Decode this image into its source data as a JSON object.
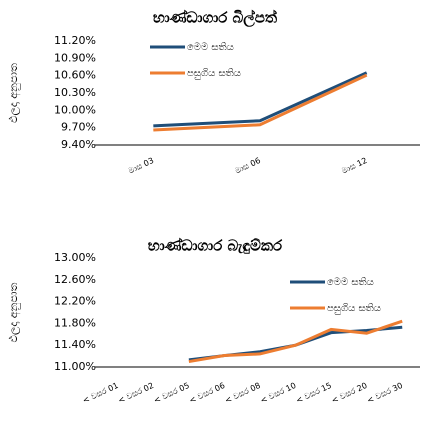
{
  "chart_data": [
    {
      "type": "line",
      "title": "භාණ්ඩාගාර බිල්පත්",
      "y_label": "ඵලදා අනුපාත",
      "categories": [
        "මාස 03",
        "මාස 06",
        "මාස 12"
      ],
      "series": [
        {
          "name": "මෙම සතිය",
          "color": "#1f4e79",
          "values": [
            9.73,
            9.82,
            10.65
          ]
        },
        {
          "name": "පසුගිය සතිය",
          "color": "#ed7d31",
          "values": [
            9.66,
            9.75,
            10.61
          ]
        }
      ],
      "ylim": [
        9.4,
        11.2
      ],
      "yticks": [
        {
          "value": 9.4,
          "label": "9.40%"
        },
        {
          "value": 9.7,
          "label": "9.70%"
        },
        {
          "value": 10.0,
          "label": "10.00%"
        },
        {
          "value": 10.3,
          "label": "10.30%"
        },
        {
          "value": 10.6,
          "label": "10.60%"
        },
        {
          "value": 10.9,
          "label": "10.90%"
        },
        {
          "value": 11.2,
          "label": "11.20%"
        }
      ],
      "legend": "top"
    },
    {
      "type": "line",
      "title": "භාණ්ඩාගාර බැඳුම්කර",
      "y_label": "ඵලදා අනුපාත",
      "categories": [
        "< වසර 01",
        "< වසර 02",
        "< වසර 05",
        "< වසර 06",
        "< වසර 08",
        "< වසර 10",
        "< වසර 15",
        "< වසර 20",
        "< වසර 30"
      ],
      "series": [
        {
          "name": "මෙම සතිය",
          "color": "#1f4e79",
          "values": [
            null,
            null,
            11.13,
            11.21,
            11.28,
            11.4,
            11.63,
            11.67,
            11.73
          ]
        },
        {
          "name": "පසුගිය සතිය",
          "color": "#ed7d31",
          "values": [
            null,
            null,
            11.1,
            11.21,
            11.24,
            11.4,
            11.69,
            11.62,
            11.84
          ]
        }
      ],
      "ylim": [
        11.0,
        13.0
      ],
      "yticks": [
        {
          "value": 11.0,
          "label": "11.00%"
        },
        {
          "value": 11.4,
          "label": "11.40%"
        },
        {
          "value": 11.8,
          "label": "11.80%"
        },
        {
          "value": 12.2,
          "label": "12.20%"
        },
        {
          "value": 12.6,
          "label": "12.60%"
        },
        {
          "value": 13.0,
          "label": "13.00%"
        }
      ],
      "legend": "top-right"
    }
  ]
}
